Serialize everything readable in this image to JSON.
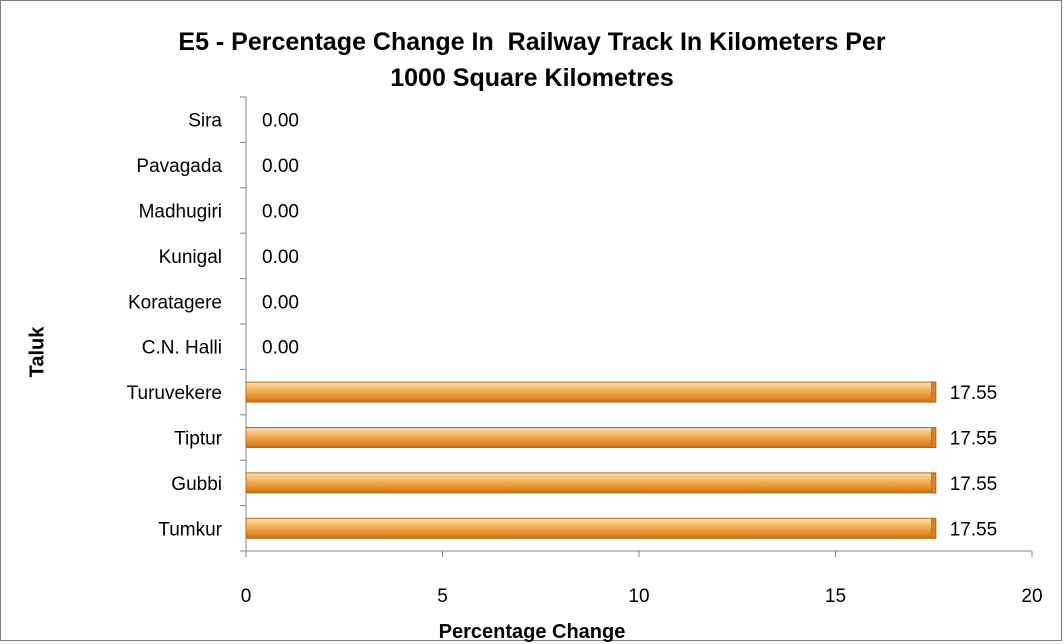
{
  "chart_data": {
    "type": "bar",
    "orientation": "horizontal",
    "title": [
      "E5 - Percentage Change In  Railway Track In Kilometers Per",
      "1000 Square Kilometres"
    ],
    "xlabel": "Percentage Change",
    "ylabel": "Taluk",
    "categories": [
      "Tumkur",
      "Gubbi",
      "Tiptur",
      "Turuvekere",
      "C.N. Halli",
      "Koratagere",
      "Kunigal",
      "Madhugiri",
      "Pavagada",
      "Sira"
    ],
    "values": [
      17.55,
      17.55,
      17.55,
      17.55,
      0.0,
      0.0,
      0.0,
      0.0,
      0.0,
      0.0
    ],
    "data_labels": [
      "17.55",
      "17.55",
      "17.55",
      "17.55",
      "0.00",
      "0.00",
      "0.00",
      "0.00",
      "0.00",
      "0.00"
    ],
    "xlim": [
      0,
      20
    ],
    "xticks": [
      "0",
      "5",
      "10",
      "15",
      "20"
    ],
    "grid": false,
    "legend": "none",
    "bar_color": "#f0a040",
    "bar_edge_color": "#b8691c"
  }
}
